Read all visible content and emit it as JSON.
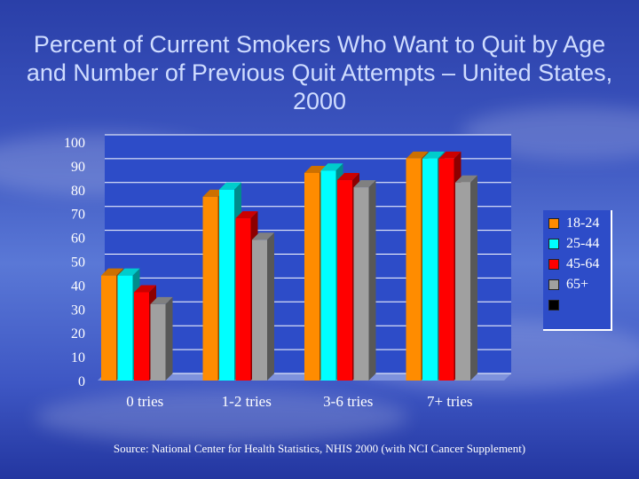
{
  "title": "Percent of Current Smokers Who Want to Quit by Age and Number of Previous Quit Attempts – United States, 2000",
  "source": "Source: National Center for Health Statistics, NHIS 2000 (with NCI Cancer Supplement)",
  "chart_data": {
    "type": "bar",
    "title": "Percent of Current Smokers Who Want to Quit by Age and Number of Previous Quit Attempts – United States, 2000",
    "xlabel": "",
    "ylabel": "",
    "ylim": [
      0,
      100
    ],
    "yticks": [
      "0",
      "10",
      "20",
      "30",
      "40",
      "50",
      "60",
      "70",
      "80",
      "90",
      "100"
    ],
    "grid": true,
    "legend_position": "right",
    "categories": [
      "0 tries",
      "1-2 tries",
      "3-6 tries",
      "7+ tries"
    ],
    "series": [
      {
        "name": "18-24",
        "color": "#ff8c00",
        "values": [
          44,
          77,
          87,
          93
        ]
      },
      {
        "name": "25-44",
        "color": "#00ffff",
        "values": [
          44,
          80,
          88,
          93
        ]
      },
      {
        "name": "45-64",
        "color": "#ff0000",
        "values": [
          37,
          68,
          84,
          93
        ]
      },
      {
        "name": "65+",
        "color": "#a0a0a0",
        "values": [
          32,
          59,
          81,
          83
        ]
      }
    ],
    "legend_extra_color": "#000000"
  }
}
